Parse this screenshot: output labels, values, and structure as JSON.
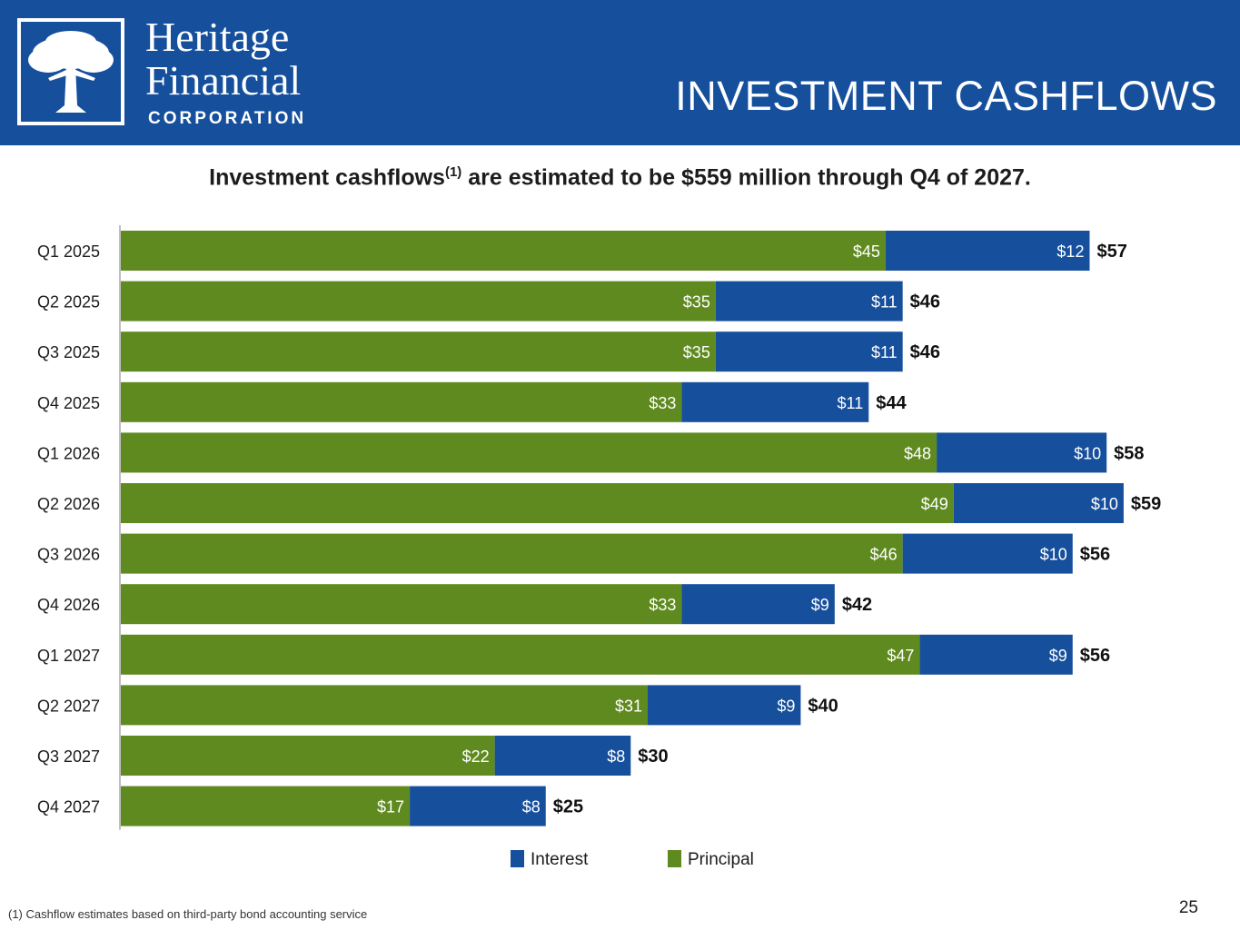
{
  "header": {
    "logo_line1": "Heritage",
    "logo_line2": "Financial",
    "logo_line3": "CORPORATION",
    "logo_icon": "tree-icon",
    "title": "INVESTMENT CASHFLOWS",
    "background_color": "#164f9c"
  },
  "subtitle": {
    "text_before": "Investment cashflows",
    "superscript": "(1)",
    "text_after": " are estimated to be $559 million through Q4 of 2027."
  },
  "chart_data": {
    "type": "bar",
    "orientation": "horizontal",
    "stacked": true,
    "categories": [
      "Q1 2025",
      "Q2 2025",
      "Q3 2025",
      "Q4 2025",
      "Q1 2026",
      "Q2 2026",
      "Q3 2026",
      "Q4 2026",
      "Q1 2027",
      "Q2 2027",
      "Q3 2027",
      "Q4 2027"
    ],
    "series": [
      {
        "name": "Principal",
        "color": "#5f8a1f",
        "values": [
          45,
          35,
          35,
          33,
          48,
          49,
          46,
          33,
          47,
          31,
          22,
          17
        ],
        "labels": [
          "$45",
          "$35",
          "$35",
          "$33",
          "$48",
          "$49",
          "$46",
          "$33",
          "$47",
          "$31",
          "$22",
          "$17"
        ]
      },
      {
        "name": "Interest",
        "color": "#164f9c",
        "values": [
          12,
          11,
          11,
          11,
          10,
          10,
          10,
          9,
          9,
          9,
          8,
          8
        ],
        "labels": [
          "$12",
          "$11",
          "$11",
          "$11",
          "$10",
          "$10",
          "$10",
          "$9",
          "$9",
          "$9",
          "$8",
          "$8"
        ]
      }
    ],
    "totals": [
      57,
      46,
      46,
      44,
      58,
      59,
      56,
      42,
      56,
      40,
      30,
      25
    ],
    "total_labels": [
      "$57",
      "$46",
      "$46",
      "$44",
      "$58",
      "$59",
      "$56",
      "$42",
      "$56",
      "$40",
      "$30",
      "$25"
    ],
    "xlim": [
      0,
      60
    ],
    "grid": false,
    "legend": [
      "Interest",
      "Principal"
    ],
    "legend_position": "bottom"
  },
  "footnote": "(1) Cashflow estimates based on third-party bond accounting service",
  "page_number": "25"
}
